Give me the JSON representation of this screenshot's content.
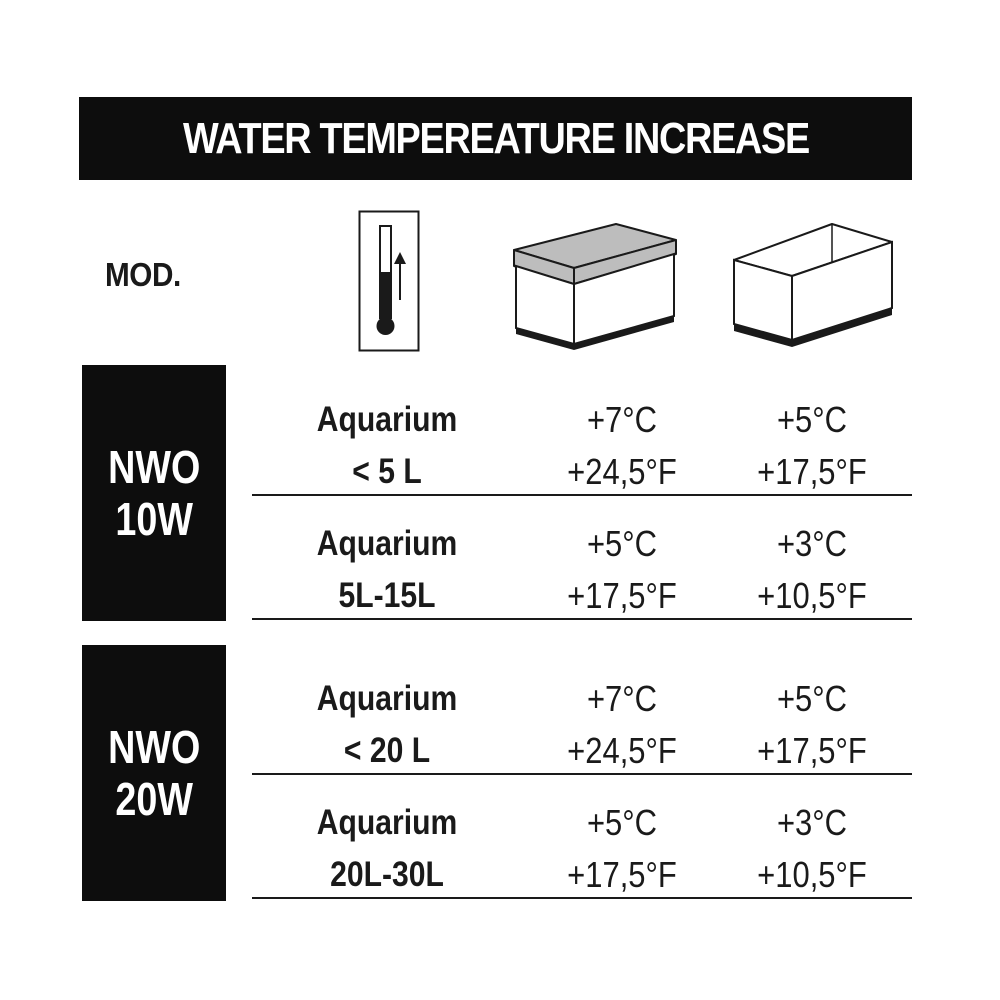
{
  "title": "WATER TEMPEREATURE INCREASE",
  "header": {
    "mod_label": "MOD.",
    "columns": [
      {
        "icon": "thermometer-rising-icon"
      },
      {
        "icon": "covered-aquarium-icon"
      },
      {
        "icon": "open-aquarium-icon"
      }
    ]
  },
  "models": [
    {
      "label": "NWO\n10W",
      "rows": [
        {
          "size_line1": "Aquarium",
          "size_line2": "< 5 L",
          "covered_c": "+7°C",
          "covered_f": "+24,5°F",
          "open_c": "+5°C",
          "open_f": "+17,5°F"
        },
        {
          "size_line1": "Aquarium",
          "size_line2": "5L-15L",
          "covered_c": "+5°C",
          "covered_f": "+17,5°F",
          "open_c": "+3°C",
          "open_f": "+10,5°F"
        }
      ]
    },
    {
      "label": "NWO\n20W",
      "rows": [
        {
          "size_line1": "Aquarium",
          "size_line2": "< 20 L",
          "covered_c": "+7°C",
          "covered_f": "+24,5°F",
          "open_c": "+5°C",
          "open_f": "+17,5°F"
        },
        {
          "size_line1": "Aquarium",
          "size_line2": "20L-30L",
          "covered_c": "+5°C",
          "covered_f": "+17,5°F",
          "open_c": "+3°C",
          "open_f": "+10,5°F"
        }
      ]
    }
  ]
}
